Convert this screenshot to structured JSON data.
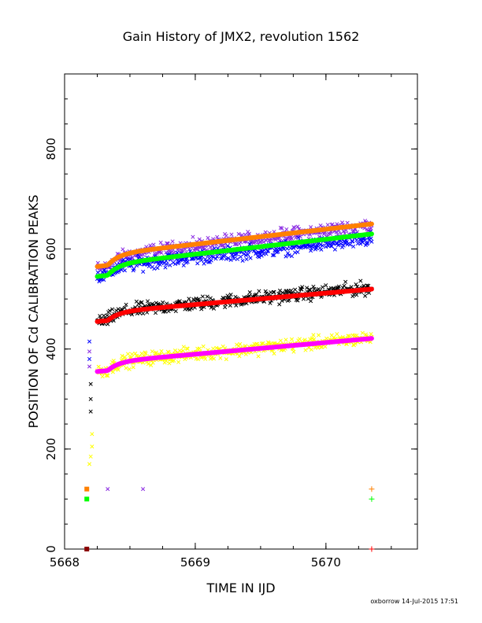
{
  "chart_data": {
    "type": "scatter",
    "title": "Gain History of JMX2, revolution 1562",
    "xlabel": "TIME IN IJD",
    "ylabel": "POSITION OF Cd CALIBRATION PEAKS",
    "xlim": [
      5668.0,
      5670.7
    ],
    "ylim": [
      0,
      950
    ],
    "xticks": [
      5668,
      5669,
      5670
    ],
    "yticks": [
      0,
      200,
      400,
      600,
      800
    ],
    "grid": false,
    "legend": "none",
    "series": [
      {
        "marker": "x",
        "color": "#8a2be2",
        "trend": {
          "x_start": 5668.25,
          "x_end": 5670.35,
          "y0": 560,
          "y_end": 625,
          "rise_at": 5668.32
        },
        "noise": 14
      },
      {
        "marker": "x",
        "color": "#0000ff",
        "trend": {
          "x_start": 5668.25,
          "x_end": 5670.35,
          "y0": 545,
          "y_end": 600,
          "rise_at": 5668.32
        },
        "noise": 14
      },
      {
        "marker": "x",
        "color": "#000000",
        "trend": {
          "x_start": 5668.25,
          "x_end": 5670.35,
          "y0": 455,
          "y_end": 505,
          "rise_at": 5668.32
        },
        "noise": 13
      },
      {
        "marker": "x",
        "color": "#ffff00",
        "trend": {
          "x_start": 5668.25,
          "x_end": 5670.35,
          "y0": 355,
          "y_end": 405,
          "rise_at": 5668.32
        },
        "noise": 13
      },
      {
        "marker": "line",
        "color": "#ff8000",
        "trend": {
          "x_start": 5668.25,
          "x_end": 5670.35,
          "y0": 565,
          "y_end": 628,
          "rise_at": 5668.33
        }
      },
      {
        "marker": "line",
        "color": "#00ff00",
        "trend": {
          "x_start": 5668.25,
          "x_end": 5670.35,
          "y0": 545,
          "y_end": 608,
          "rise_at": 5668.33
        }
      },
      {
        "marker": "line",
        "color": "#ff0000",
        "trend": {
          "x_start": 5668.25,
          "x_end": 5670.35,
          "y0": 455,
          "y_end": 503,
          "rise_at": 5668.33
        }
      },
      {
        "marker": "line",
        "color": "#ff00ff",
        "trend": {
          "x_start": 5668.25,
          "x_end": 5670.35,
          "y0": 355,
          "y_end": 404,
          "rise_at": 5668.33
        }
      }
    ],
    "early_points": [
      {
        "x": 5668.19,
        "y": 415,
        "color": "#0000ff"
      },
      {
        "x": 5668.19,
        "y": 395,
        "color": "#8a2be2"
      },
      {
        "x": 5668.19,
        "y": 380,
        "color": "#0000ff"
      },
      {
        "x": 5668.19,
        "y": 365,
        "color": "#8a2be2"
      },
      {
        "x": 5668.2,
        "y": 330,
        "color": "#000000"
      },
      {
        "x": 5668.2,
        "y": 300,
        "color": "#000000"
      },
      {
        "x": 5668.2,
        "y": 275,
        "color": "#000000"
      },
      {
        "x": 5668.21,
        "y": 230,
        "color": "#ffff00"
      },
      {
        "x": 5668.21,
        "y": 205,
        "color": "#ffff00"
      },
      {
        "x": 5668.2,
        "y": 185,
        "color": "#ffff00"
      },
      {
        "x": 5668.19,
        "y": 170,
        "color": "#ffff00"
      },
      {
        "x": 5668.33,
        "y": 120,
        "color": "#8a2be2"
      },
      {
        "x": 5668.6,
        "y": 120,
        "color": "#8a2be2"
      }
    ],
    "low_markers": [
      {
        "x": 5668.17,
        "y": 120,
        "color": "#ff8000",
        "shape": "square"
      },
      {
        "x": 5668.17,
        "y": 100,
        "color": "#00ff00",
        "shape": "square"
      },
      {
        "x": 5668.17,
        "y": 0,
        "color": "#8b0000",
        "shape": "square"
      },
      {
        "x": 5670.35,
        "y": 120,
        "color": "#ff8000",
        "shape": "plus"
      },
      {
        "x": 5670.35,
        "y": 100,
        "color": "#00ff00",
        "shape": "plus"
      },
      {
        "x": 5670.35,
        "y": 0,
        "color": "#ff0000",
        "shape": "plus"
      }
    ]
  },
  "footer": "oxborrow 14-Jul-2015 17:51"
}
